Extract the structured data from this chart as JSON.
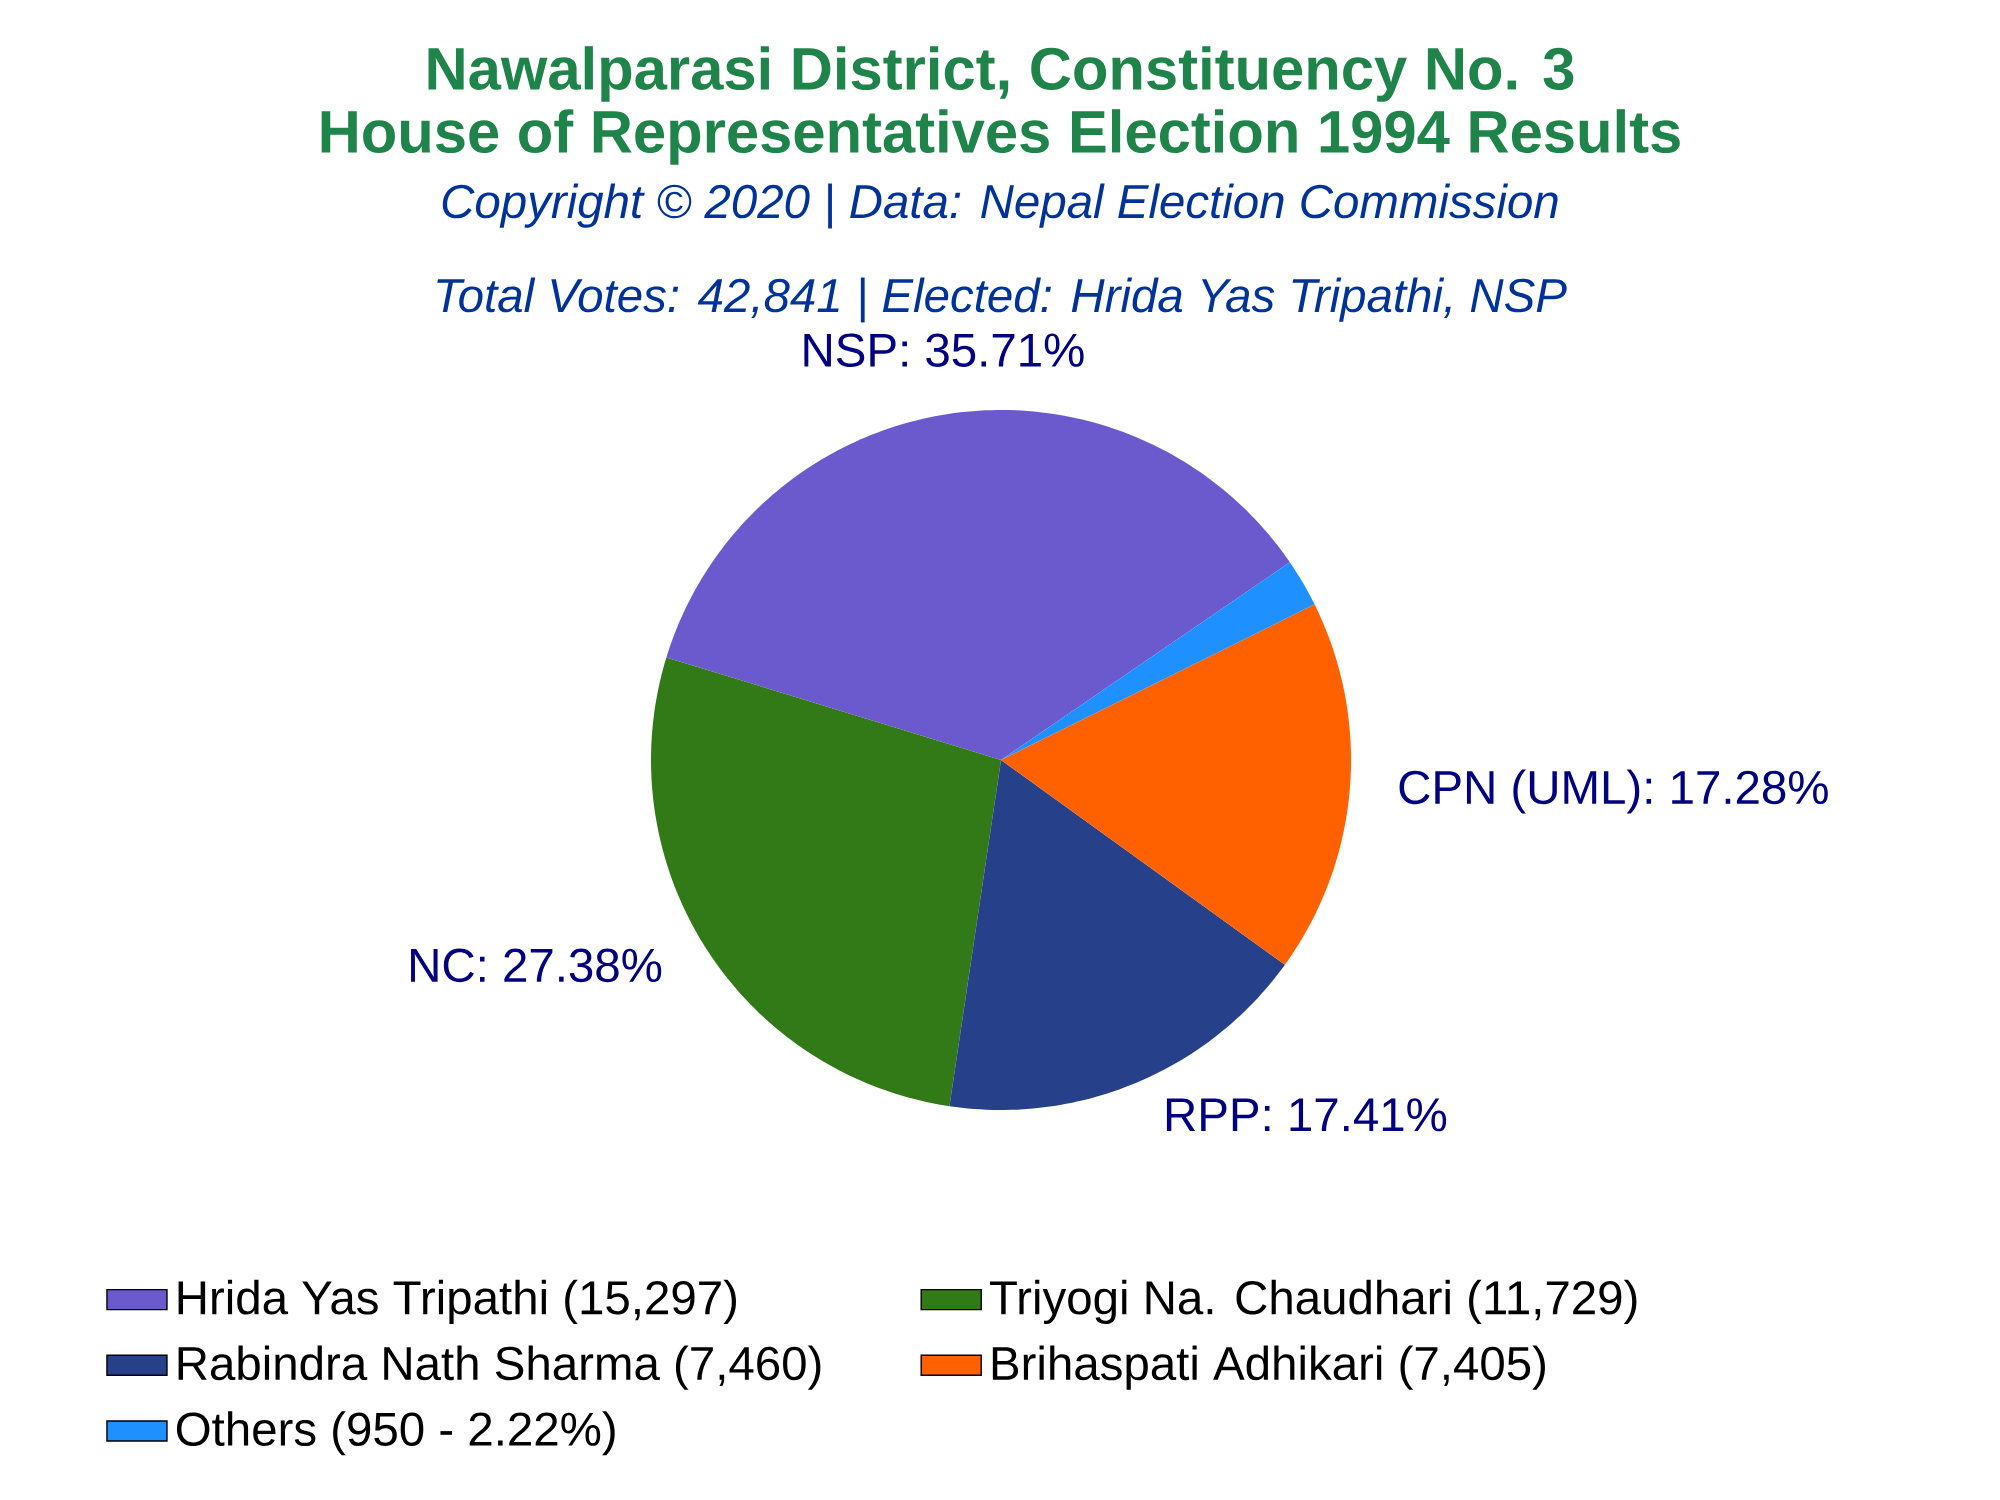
{
  "chart_data": {
    "type": "pie",
    "title": "Nawalparasi District, Constituency No. 3",
    "subtitle": "House of Representatives Election 1994 Results",
    "annotations": [
      "Copyright © 2020 | Data: Nepal Election Commission",
      "Total Votes: 42,841 | Elected: Hrida Yas Tripathi, NSP"
    ],
    "categories": [
      "Hrida Yas Tripathi (15,297)",
      "Triyogi Na. Chaudhari (11,729)",
      "Rabindra Nath Sharma (7,460)",
      "Brihaspati Adhikari (7,405)",
      "Others (950 - 2.22%)"
    ],
    "values": [
      35.71,
      27.38,
      17.41,
      17.28,
      2.22
    ],
    "colors": [
      "#6a5acd",
      "#317a17",
      "#26418a",
      "#ff6000",
      "#1e90ff"
    ],
    "value_labels": [
      "NSP: 35.71%",
      "NC: 27.38%",
      "RPP: 17.41%",
      "CPN (UML): 17.28%",
      null
    ],
    "legend": "bottom"
  }
}
